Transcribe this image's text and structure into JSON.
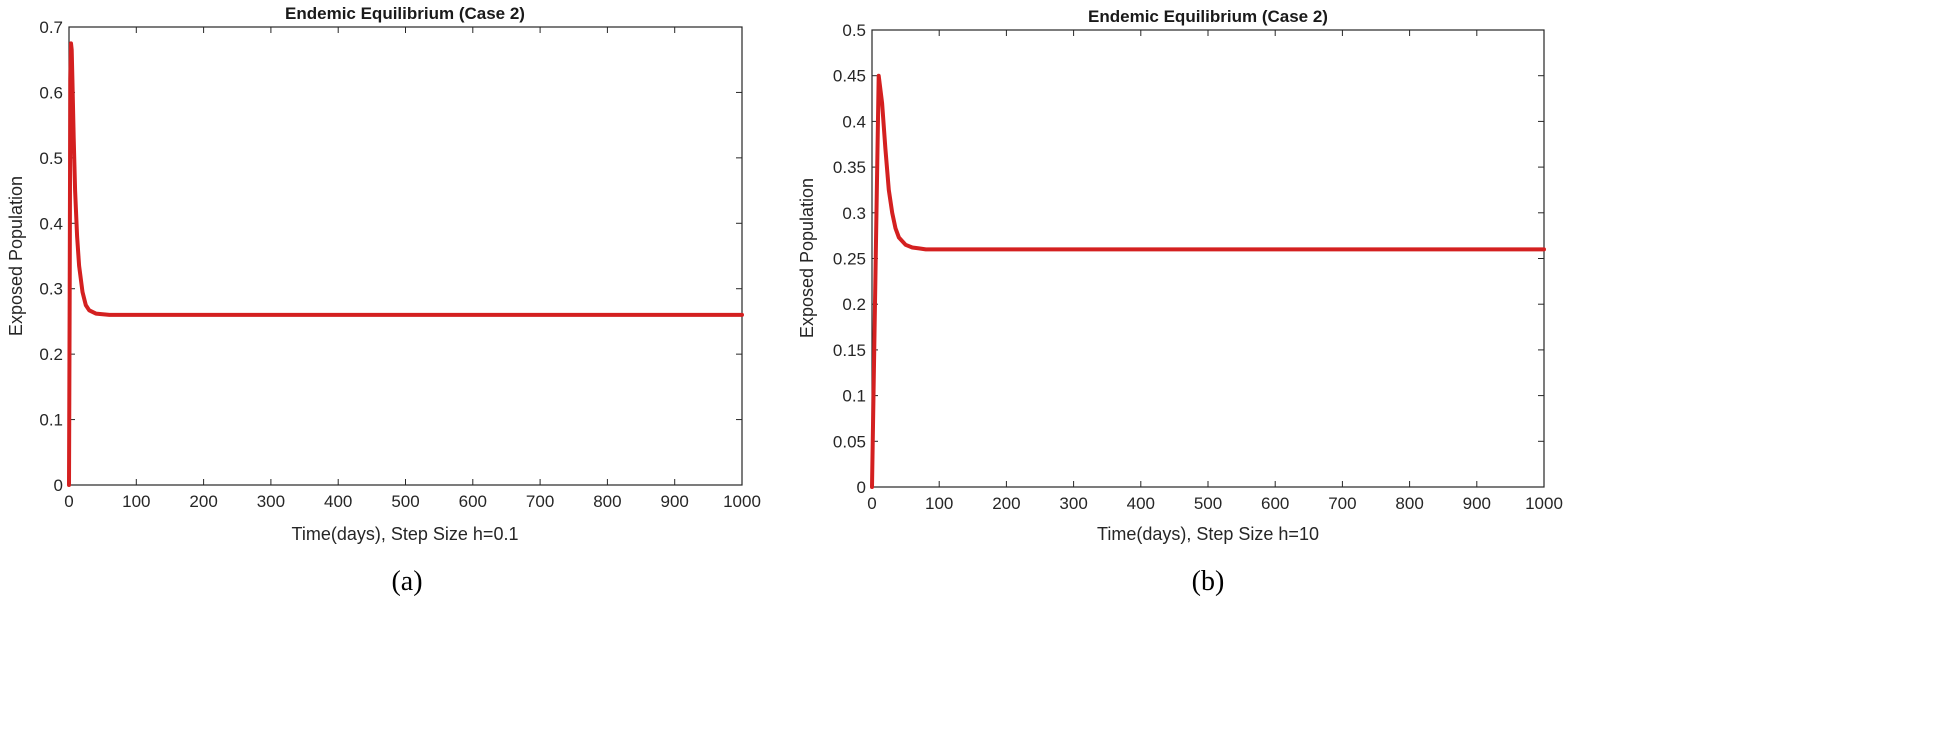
{
  "chart_data": [
    {
      "type": "line",
      "title": "Endemic Equilibrium (Case 2)",
      "xlabel": "Time(days), Step Size h=0.1",
      "ylabel": "Exposed Population",
      "caption": "(a)",
      "xlim": [
        0,
        1000
      ],
      "ylim": [
        0,
        0.7
      ],
      "xticks": [
        0,
        100,
        200,
        300,
        400,
        500,
        600,
        700,
        800,
        900,
        1000
      ],
      "yticks": [
        0,
        0.1,
        0.2,
        0.3,
        0.4,
        0.5,
        0.6,
        0.7
      ],
      "xtick_labels": [
        "0",
        "100",
        "200",
        "300",
        "400",
        "500",
        "600",
        "700",
        "800",
        "900",
        "1000"
      ],
      "ytick_labels": [
        "0",
        "0.1",
        "0.2",
        "0.3",
        "0.4",
        "0.5",
        "0.6",
        "0.7"
      ],
      "line_color": "#d42020",
      "series": [
        {
          "name": "Exposed",
          "x": [
            0,
            1,
            2,
            3,
            4,
            5,
            7,
            9,
            12,
            15,
            20,
            25,
            30,
            40,
            50,
            60,
            80,
            100,
            200,
            300,
            400,
            500,
            600,
            700,
            800,
            900,
            1000
          ],
          "y": [
            0,
            0.3,
            0.62,
            0.675,
            0.665,
            0.62,
            0.53,
            0.45,
            0.38,
            0.335,
            0.295,
            0.275,
            0.267,
            0.262,
            0.261,
            0.26,
            0.26,
            0.26,
            0.26,
            0.26,
            0.26,
            0.26,
            0.26,
            0.26,
            0.26,
            0.26,
            0.26
          ]
        }
      ]
    },
    {
      "type": "line",
      "title": "Endemic Equilibrium (Case 2)",
      "xlabel": "Time(days), Step Size h=10",
      "ylabel": "Exposed Population",
      "caption": "(b)",
      "xlim": [
        0,
        1000
      ],
      "ylim": [
        0,
        0.5
      ],
      "xticks": [
        0,
        100,
        200,
        300,
        400,
        500,
        600,
        700,
        800,
        900,
        1000
      ],
      "yticks": [
        0,
        0.05,
        0.1,
        0.15,
        0.2,
        0.25,
        0.3,
        0.35,
        0.4,
        0.45,
        0.5
      ],
      "xtick_labels": [
        "0",
        "100",
        "200",
        "300",
        "400",
        "500",
        "600",
        "700",
        "800",
        "900",
        "1000"
      ],
      "ytick_labels": [
        "0",
        "0.05",
        "0.1",
        "0.15",
        "0.2",
        "0.25",
        "0.3",
        "0.35",
        "0.4",
        "0.45",
        "0.5"
      ],
      "line_color": "#d42020",
      "series": [
        {
          "name": "Exposed",
          "x": [
            0,
            10,
            15,
            20,
            25,
            30,
            35,
            40,
            50,
            60,
            70,
            80,
            100,
            200,
            300,
            400,
            500,
            600,
            700,
            800,
            900,
            1000
          ],
          "y": [
            0,
            0.45,
            0.42,
            0.37,
            0.325,
            0.3,
            0.283,
            0.273,
            0.265,
            0.262,
            0.261,
            0.26,
            0.26,
            0.26,
            0.26,
            0.26,
            0.26,
            0.26,
            0.26,
            0.26,
            0.26,
            0.26
          ]
        }
      ]
    }
  ]
}
